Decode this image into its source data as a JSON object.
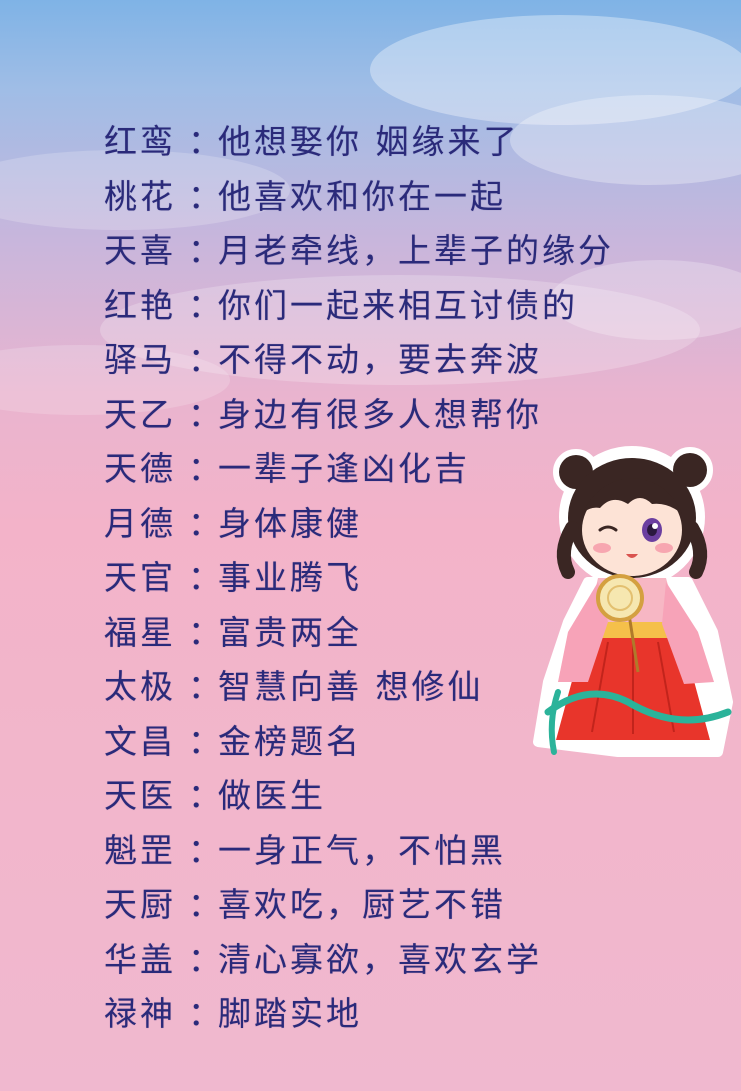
{
  "entries": [
    {
      "star": "红鸾",
      "meaning": "他想娶你 姻缘来了"
    },
    {
      "star": "桃花",
      "meaning": "他喜欢和你在一起"
    },
    {
      "star": "天喜",
      "meaning": "月老牵线，上辈子的缘分"
    },
    {
      "star": "红艳",
      "meaning": "你们一起来相互讨债的"
    },
    {
      "star": "驿马",
      "meaning": "不得不动，要去奔波"
    },
    {
      "star": "天乙",
      "meaning": "身边有很多人想帮你"
    },
    {
      "star": "天德",
      "meaning": "一辈子逢凶化吉"
    },
    {
      "star": "月德",
      "meaning": "身体康健"
    },
    {
      "star": "天官",
      "meaning": "事业腾飞"
    },
    {
      "star": "福星",
      "meaning": "富贵两全"
    },
    {
      "star": "太极",
      "meaning": "智慧向善 想修仙"
    },
    {
      "star": "文昌",
      "meaning": "金榜题名"
    },
    {
      "star": "天医",
      "meaning": "做医生"
    },
    {
      "star": "魁罡",
      "meaning": "一身正气，不怕黑"
    },
    {
      "star": "天厨",
      "meaning": "喜欢吃，厨艺不错"
    },
    {
      "star": "华盖",
      "meaning": "清心寡欲，喜欢玄学"
    },
    {
      "star": "禄神",
      "meaning": "脚踏实地"
    }
  ],
  "separator": "：",
  "colors": {
    "text": "#2a2a7a",
    "sky_top": "#7fb3e6",
    "pink_bottom": "#f0b8cf"
  },
  "illustration": {
    "icon": "chibi-girl-hanfu-illustration"
  }
}
